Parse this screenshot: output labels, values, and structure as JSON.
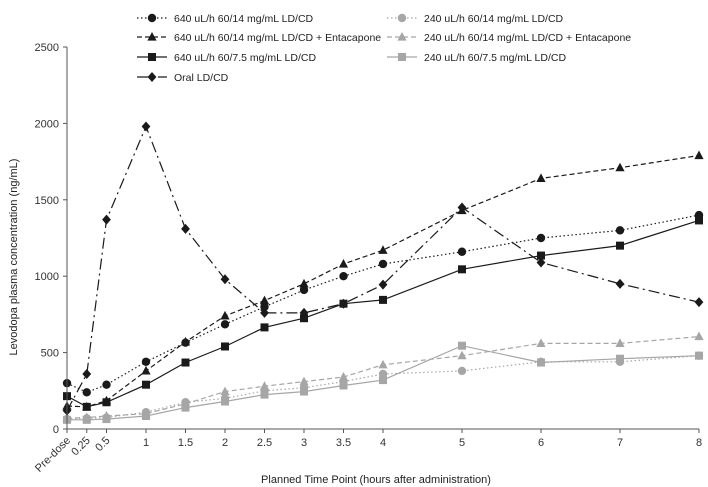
{
  "chart_data": {
    "type": "line",
    "xlabel": "Planned Time Point (hours after administration)",
    "ylabel": "Levodopa plasma concentration (ng/mL)",
    "categories": [
      "Pre-dose",
      "0.25",
      "0.5",
      "1",
      "1.5",
      "2",
      "2.5",
      "3",
      "3.5",
      "4",
      "5",
      "6",
      "7",
      "8"
    ],
    "x": [
      0,
      0.25,
      0.5,
      1,
      1.5,
      2,
      2.5,
      3,
      3.5,
      4,
      5,
      6,
      7,
      8
    ],
    "ylim": [
      0,
      2500
    ],
    "yticks": [
      0,
      500,
      1000,
      1500,
      2000,
      2500
    ],
    "grid": false,
    "legend_position": "top",
    "series": [
      {
        "name": "640 uL/h 60/14 mg/mL LD/CD",
        "color": "#1a1a1a",
        "marker": "circle",
        "dash": "dotted",
        "values": [
          300,
          240,
          290,
          440,
          565,
          685,
          800,
          910,
          1000,
          1080,
          1160,
          1250,
          1300,
          1400
        ]
      },
      {
        "name": "240 uL/h 60/14 mg/mL LD/CD",
        "color": "#a6a6a6",
        "marker": "circle",
        "dash": "dotted",
        "values": [
          65,
          70,
          75,
          110,
          175,
          200,
          250,
          270,
          310,
          360,
          380,
          440,
          440,
          480
        ]
      },
      {
        "name": "640 uL/h 60/14 mg/mL LD/CD + Entacapone",
        "color": "#1a1a1a",
        "marker": "triangle",
        "dash": "dashed",
        "values": [
          150,
          145,
          185,
          380,
          570,
          740,
          840,
          950,
          1080,
          1170,
          1430,
          1640,
          1710,
          1790
        ]
      },
      {
        "name": "240 uL/h 60/14 mg/mL LD/CD + Entacapone",
        "color": "#a6a6a6",
        "marker": "triangle",
        "dash": "dashed",
        "values": [
          70,
          75,
          85,
          100,
          165,
          245,
          280,
          310,
          340,
          420,
          480,
          560,
          560,
          605
        ]
      },
      {
        "name": "640 uL/h 60/7.5 mg/mL LD/CD",
        "color": "#1a1a1a",
        "marker": "square",
        "dash": "solid",
        "values": [
          215,
          145,
          175,
          290,
          435,
          540,
          665,
          725,
          820,
          845,
          1045,
          1135,
          1200,
          1365
        ]
      },
      {
        "name": "240 uL/h 60/7.5 mg/mL LD/CD",
        "color": "#a6a6a6",
        "marker": "square",
        "dash": "solid",
        "values": [
          60,
          60,
          65,
          85,
          140,
          180,
          225,
          245,
          285,
          320,
          545,
          435,
          460,
          480
        ]
      },
      {
        "name": "Oral LD/CD",
        "color": "#1a1a1a",
        "marker": "diamond",
        "dash": "longdash",
        "values": [
          120,
          360,
          1370,
          1980,
          1310,
          980,
          760,
          760,
          820,
          945,
          1450,
          1090,
          950,
          830
        ]
      }
    ]
  }
}
